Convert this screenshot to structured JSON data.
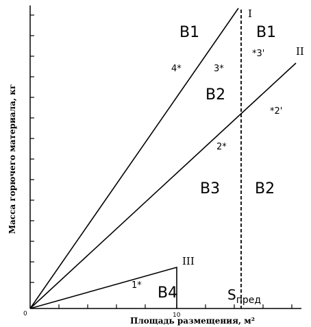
{
  "axes": {
    "y_label": "Масса горючего материала, кг",
    "x_label": "Площадь размещения, м²",
    "origin_label": "0",
    "x_tick_label": "10"
  },
  "lines": {
    "line_1": "I",
    "line_2": "II",
    "line_3": "III"
  },
  "zones": {
    "b1_left": "B1",
    "b1_right": "B1",
    "b2_middle": "B2",
    "b2_right": "B2",
    "b3": "B3",
    "b4": "B4"
  },
  "points": {
    "p1": "1*",
    "p2": "2*",
    "p3": "3*",
    "p4": "4*",
    "p2_prime": "*2'",
    "p3_prime": "*3'"
  },
  "threshold": {
    "symbol": "S",
    "subscript": "пред"
  }
}
